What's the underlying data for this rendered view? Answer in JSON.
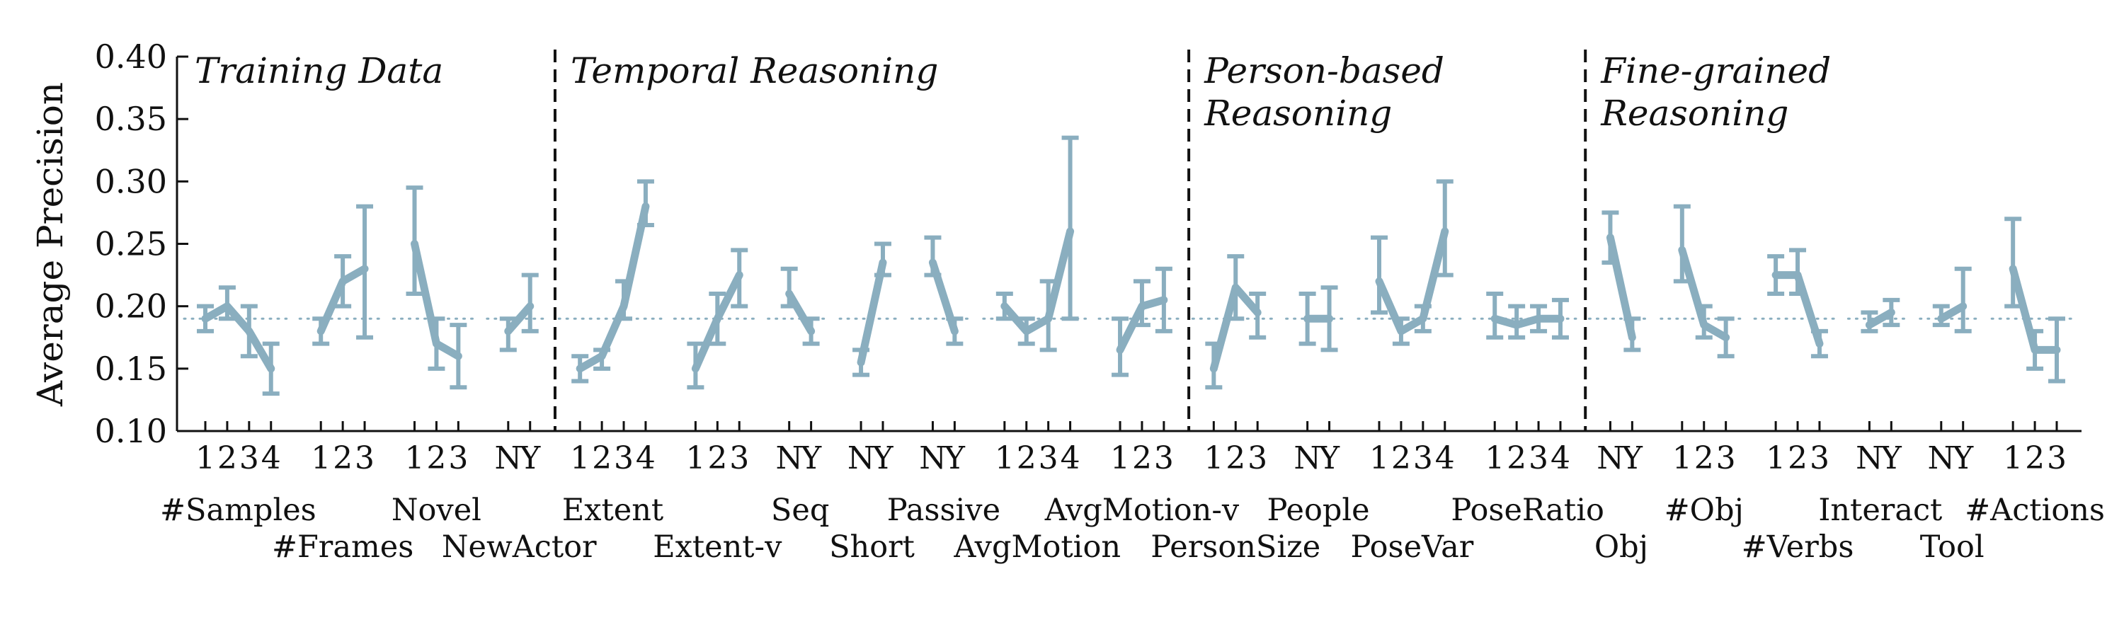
{
  "chart_data": {
    "type": "line",
    "ylabel": "Average Precision",
    "ylim": [
      0.1,
      0.4
    ],
    "yticks": [
      "0.10",
      "0.15",
      "0.20",
      "0.25",
      "0.30",
      "0.35",
      "0.40"
    ],
    "baseline": 0.19,
    "colors": {
      "series": "#8aaebf",
      "baseline": "#8aaebf",
      "axis": "#111111"
    },
    "sections": [
      {
        "label_lines": [
          "Training Data"
        ]
      },
      {
        "label_lines": [
          "Temporal Reasoning"
        ]
      },
      {
        "label_lines": [
          "Person-based",
          "Reasoning"
        ]
      },
      {
        "label_lines": [
          "Fine-grained",
          "Reasoning"
        ]
      }
    ],
    "groups": [
      {
        "name": "#Samples",
        "row": 1,
        "section": 0,
        "labels": [
          "1",
          "2",
          "3",
          "4"
        ],
        "values": [
          0.19,
          0.2,
          0.18,
          0.15
        ],
        "err_low": [
          0.18,
          0.19,
          0.16,
          0.13
        ],
        "err_high": [
          0.2,
          0.215,
          0.2,
          0.17
        ]
      },
      {
        "name": "#Frames",
        "row": 2,
        "section": 0,
        "labels": [
          "1",
          "2",
          "3"
        ],
        "values": [
          0.18,
          0.22,
          0.23
        ],
        "err_low": [
          0.17,
          0.2,
          0.175
        ],
        "err_high": [
          0.19,
          0.24,
          0.28
        ]
      },
      {
        "name": "Novel",
        "row": 1,
        "section": 0,
        "labels": [
          "1",
          "2",
          "3"
        ],
        "values": [
          0.25,
          0.17,
          0.16
        ],
        "err_low": [
          0.21,
          0.15,
          0.135
        ],
        "err_high": [
          0.295,
          0.19,
          0.185
        ]
      },
      {
        "name": "NewActor",
        "row": 2,
        "section": 0,
        "labels": [
          "N",
          "Y"
        ],
        "values": [
          0.18,
          0.2
        ],
        "err_low": [
          0.165,
          0.18
        ],
        "err_high": [
          0.19,
          0.225
        ]
      },
      {
        "name": "Extent",
        "row": 1,
        "section": 1,
        "labels": [
          "1",
          "2",
          "3",
          "4"
        ],
        "values": [
          0.15,
          0.16,
          0.2,
          0.28
        ],
        "err_low": [
          0.14,
          0.15,
          0.19,
          0.265
        ],
        "err_high": [
          0.16,
          0.165,
          0.22,
          0.3
        ]
      },
      {
        "name": "Extent-v",
        "row": 2,
        "section": 1,
        "labels": [
          "1",
          "2",
          "3"
        ],
        "values": [
          0.15,
          0.19,
          0.225
        ],
        "err_low": [
          0.135,
          0.17,
          0.2
        ],
        "err_high": [
          0.17,
          0.21,
          0.245
        ]
      },
      {
        "name": "Seq",
        "row": 1,
        "section": 1,
        "labels": [
          "N",
          "Y"
        ],
        "values": [
          0.21,
          0.18
        ],
        "err_low": [
          0.2,
          0.17
        ],
        "err_high": [
          0.23,
          0.19
        ]
      },
      {
        "name": "Short",
        "row": 2,
        "section": 1,
        "labels": [
          "N",
          "Y"
        ],
        "values": [
          0.155,
          0.235
        ],
        "err_low": [
          0.145,
          0.225
        ],
        "err_high": [
          0.165,
          0.25
        ]
      },
      {
        "name": "Passive",
        "row": 1,
        "section": 1,
        "labels": [
          "N",
          "Y"
        ],
        "values": [
          0.235,
          0.18
        ],
        "err_low": [
          0.225,
          0.17
        ],
        "err_high": [
          0.255,
          0.19
        ]
      },
      {
        "name": "AvgMotion",
        "row": 2,
        "section": 1,
        "labels": [
          "1",
          "2",
          "3",
          "4"
        ],
        "values": [
          0.2,
          0.18,
          0.19,
          0.26
        ],
        "err_low": [
          0.19,
          0.17,
          0.165,
          0.19
        ],
        "err_high": [
          0.21,
          0.19,
          0.22,
          0.335
        ]
      },
      {
        "name": "AvgMotion-v",
        "row": 1,
        "section": 1,
        "labels": [
          "1",
          "2",
          "3"
        ],
        "values": [
          0.165,
          0.2,
          0.205
        ],
        "err_low": [
          0.145,
          0.185,
          0.18
        ],
        "err_high": [
          0.19,
          0.22,
          0.23
        ]
      },
      {
        "name": "PersonSize",
        "row": 2,
        "section": 2,
        "labels": [
          "1",
          "2",
          "3"
        ],
        "values": [
          0.15,
          0.215,
          0.195
        ],
        "err_low": [
          0.135,
          0.19,
          0.175
        ],
        "err_high": [
          0.17,
          0.24,
          0.21
        ]
      },
      {
        "name": "People",
        "row": 1,
        "section": 2,
        "labels": [
          "N",
          "Y"
        ],
        "values": [
          0.19,
          0.19
        ],
        "err_low": [
          0.17,
          0.165
        ],
        "err_high": [
          0.21,
          0.215
        ]
      },
      {
        "name": "PoseVar",
        "row": 2,
        "section": 2,
        "labels": [
          "1",
          "2",
          "3",
          "4"
        ],
        "values": [
          0.22,
          0.18,
          0.19,
          0.26
        ],
        "err_low": [
          0.195,
          0.17,
          0.18,
          0.225
        ],
        "err_high": [
          0.255,
          0.19,
          0.2,
          0.3
        ]
      },
      {
        "name": "PoseRatio",
        "row": 1,
        "section": 2,
        "labels": [
          "1",
          "2",
          "3",
          "4"
        ],
        "values": [
          0.19,
          0.185,
          0.19,
          0.19
        ],
        "err_low": [
          0.175,
          0.175,
          0.18,
          0.175
        ],
        "err_high": [
          0.21,
          0.2,
          0.2,
          0.205
        ]
      },
      {
        "name": "Obj",
        "row": 2,
        "section": 3,
        "labels": [
          "N",
          "Y"
        ],
        "values": [
          0.255,
          0.175
        ],
        "err_low": [
          0.235,
          0.165
        ],
        "err_high": [
          0.275,
          0.19
        ]
      },
      {
        "name": "#Obj",
        "row": 1,
        "section": 3,
        "labels": [
          "1",
          "2",
          "3"
        ],
        "values": [
          0.245,
          0.185,
          0.175
        ],
        "err_low": [
          0.22,
          0.175,
          0.16
        ],
        "err_high": [
          0.28,
          0.2,
          0.19
        ]
      },
      {
        "name": "#Verbs",
        "row": 2,
        "section": 3,
        "labels": [
          "1",
          "2",
          "3"
        ],
        "values": [
          0.225,
          0.225,
          0.17
        ],
        "err_low": [
          0.21,
          0.21,
          0.16
        ],
        "err_high": [
          0.24,
          0.245,
          0.18
        ]
      },
      {
        "name": "Interact",
        "row": 1,
        "section": 3,
        "labels": [
          "N",
          "Y"
        ],
        "values": [
          0.185,
          0.195
        ],
        "err_low": [
          0.18,
          0.185
        ],
        "err_high": [
          0.195,
          0.205
        ]
      },
      {
        "name": "Tool",
        "row": 2,
        "section": 3,
        "labels": [
          "N",
          "Y"
        ],
        "values": [
          0.19,
          0.2
        ],
        "err_low": [
          0.185,
          0.18
        ],
        "err_high": [
          0.2,
          0.23
        ]
      },
      {
        "name": "#Actions",
        "row": 1,
        "section": 3,
        "labels": [
          "1",
          "2",
          "3"
        ],
        "values": [
          0.23,
          0.165,
          0.165
        ],
        "err_low": [
          0.2,
          0.15,
          0.14
        ],
        "err_high": [
          0.27,
          0.18,
          0.19
        ]
      }
    ]
  }
}
